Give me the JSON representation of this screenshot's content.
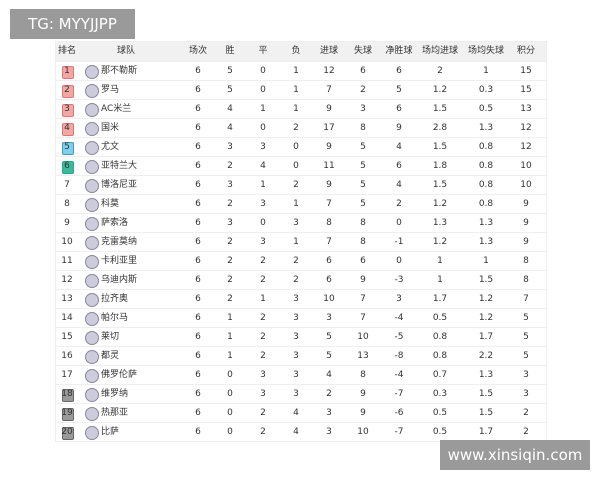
{
  "watermark_top": "TG: MYYJJPP",
  "watermark_bottom": "www.xinsiqin.com",
  "table": {
    "header": [
      "排名",
      "球队",
      "场次",
      "胜",
      "平",
      "负",
      "进球",
      "失球",
      "净胜球",
      "场均进球",
      "场均失球",
      "积分"
    ],
    "rows": [
      [
        "1",
        "那不勒斯",
        "6",
        "5",
        "0",
        "1",
        "12",
        "6",
        "6",
        "2",
        "1",
        "15"
      ],
      [
        "2",
        "罗马",
        "6",
        "5",
        "0",
        "1",
        "7",
        "2",
        "5",
        "1.2",
        "0.3",
        "15"
      ],
      [
        "3",
        "AC米兰",
        "6",
        "4",
        "1",
        "1",
        "9",
        "3",
        "6",
        "1.5",
        "0.5",
        "13"
      ],
      [
        "4",
        "国米",
        "6",
        "4",
        "0",
        "2",
        "17",
        "8",
        "9",
        "2.8",
        "1.3",
        "12"
      ],
      [
        "5",
        "尤文",
        "6",
        "3",
        "3",
        "0",
        "9",
        "5",
        "4",
        "1.5",
        "0.8",
        "12"
      ],
      [
        "6",
        "亚特兰大",
        "6",
        "2",
        "4",
        "0",
        "11",
        "5",
        "6",
        "1.8",
        "0.8",
        "10"
      ],
      [
        "7",
        "博洛尼亚",
        "6",
        "3",
        "1",
        "2",
        "9",
        "5",
        "4",
        "1.5",
        "0.8",
        "10"
      ],
      [
        "8",
        "科莫",
        "6",
        "2",
        "3",
        "1",
        "7",
        "5",
        "2",
        "1.2",
        "0.8",
        "9"
      ],
      [
        "9",
        "萨索洛",
        "6",
        "3",
        "0",
        "3",
        "8",
        "8",
        "0",
        "1.3",
        "1.3",
        "9"
      ],
      [
        "10",
        "克雷莫纳",
        "6",
        "2",
        "3",
        "1",
        "7",
        "8",
        "-1",
        "1.2",
        "1.3",
        "9"
      ],
      [
        "11",
        "卡利亚里",
        "6",
        "2",
        "2",
        "2",
        "6",
        "6",
        "0",
        "1",
        "1",
        "8"
      ],
      [
        "12",
        "乌迪内斯",
        "6",
        "2",
        "2",
        "2",
        "6",
        "9",
        "-3",
        "1",
        "1.5",
        "8"
      ],
      [
        "13",
        "拉齐奥",
        "6",
        "2",
        "1",
        "3",
        "10",
        "7",
        "3",
        "1.7",
        "1.2",
        "7"
      ],
      [
        "14",
        "帕尔马",
        "6",
        "1",
        "2",
        "3",
        "3",
        "7",
        "-4",
        "0.5",
        "1.2",
        "5"
      ],
      [
        "15",
        "莱切",
        "6",
        "1",
        "2",
        "3",
        "5",
        "10",
        "-5",
        "0.8",
        "1.7",
        "5"
      ],
      [
        "16",
        "都灵",
        "6",
        "1",
        "2",
        "3",
        "5",
        "13",
        "-8",
        "0.8",
        "2.2",
        "5"
      ],
      [
        "17",
        "佛罗伦萨",
        "6",
        "0",
        "3",
        "3",
        "4",
        "8",
        "-4",
        "0.7",
        "1.3",
        "3"
      ],
      [
        "18",
        "维罗纳",
        "6",
        "0",
        "3",
        "3",
        "2",
        "9",
        "-7",
        "0.3",
        "1.5",
        "3"
      ],
      [
        "19",
        "热那亚",
        "6",
        "0",
        "2",
        "4",
        "3",
        "9",
        "-6",
        "0.5",
        "1.5",
        "2"
      ],
      [
        "20",
        "比萨",
        "6",
        "0",
        "2",
        "4",
        "3",
        "10",
        "-7",
        "0.5",
        "1.7",
        "2"
      ]
    ]
  }
}
